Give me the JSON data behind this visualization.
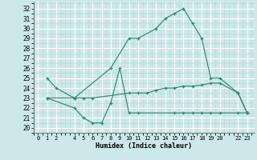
{
  "line1_x": [
    1,
    2,
    4,
    8,
    10,
    11,
    13,
    14,
    15,
    16,
    17,
    18,
    19,
    20,
    22,
    23
  ],
  "line1_y": [
    25,
    24,
    23,
    26,
    29,
    29,
    30,
    31,
    31.5,
    32,
    30.5,
    29,
    25,
    25,
    23.5,
    21.5
  ],
  "line2_x": [
    1,
    4,
    5,
    6,
    10,
    11,
    12,
    13,
    14,
    15,
    16,
    17,
    18,
    19,
    20,
    22,
    23
  ],
  "line2_y": [
    23,
    23,
    23,
    23,
    23.5,
    23.5,
    23.5,
    23.8,
    24.0,
    24.0,
    24.2,
    24.2,
    24.3,
    24.5,
    24.5,
    23.5,
    21.5
  ],
  "line3_x": [
    1,
    4,
    5,
    6,
    7,
    8,
    9,
    10,
    11,
    15,
    16,
    17,
    18,
    19,
    20,
    22,
    23
  ],
  "line3_y": [
    23,
    22,
    21,
    20.5,
    20.5,
    22.5,
    26,
    21.5,
    21.5,
    21.5,
    21.5,
    21.5,
    21.5,
    21.5,
    21.5,
    21.5,
    21.5
  ],
  "line_color": "#2e8b6e",
  "bg_color": "#cce8e8",
  "grid_major_color": "#ffffff",
  "grid_minor_color": "#b5d5d5",
  "xlabel": "Humidex (Indice chaleur)",
  "xtick_positions": [
    0,
    1,
    2,
    4,
    5,
    6,
    7,
    8,
    9,
    10,
    11,
    12,
    13,
    14,
    15,
    16,
    17,
    18,
    19,
    20,
    22,
    23
  ],
  "xtick_labels": [
    "0",
    "1",
    "2",
    "4",
    "5",
    "6",
    "7",
    "8",
    "9",
    "10",
    "11",
    "12",
    "13",
    "14",
    "15",
    "16",
    "17",
    "18",
    "19",
    "20",
    "22",
    "23"
  ],
  "ytick_positions": [
    20,
    21,
    22,
    23,
    24,
    25,
    26,
    27,
    28,
    29,
    30,
    31,
    32
  ],
  "ytick_labels": [
    "20",
    "21",
    "22",
    "23",
    "24",
    "25",
    "26",
    "27",
    "28",
    "29",
    "30",
    "31",
    "32"
  ],
  "ylim": [
    19.5,
    32.7
  ],
  "xlim": [
    -0.5,
    23.8
  ]
}
